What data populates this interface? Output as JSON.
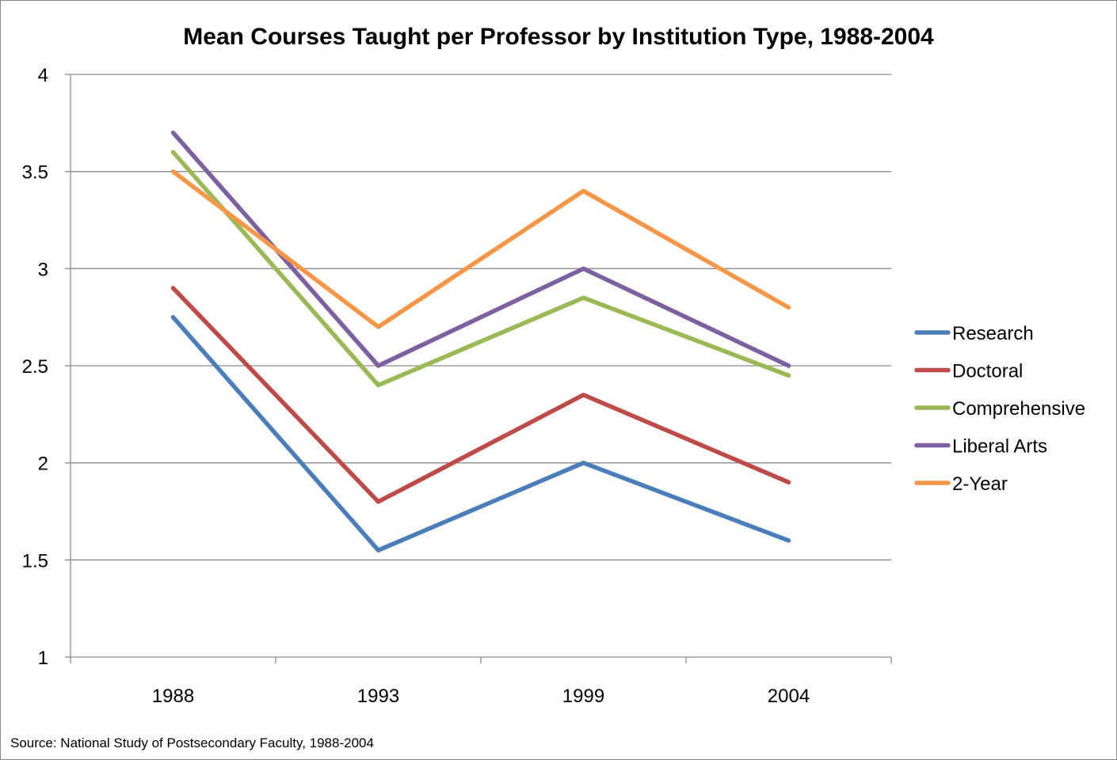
{
  "chart_data": {
    "type": "line",
    "title": "Mean Courses Taught per Professor by Institution Type, 1988-2004",
    "xlabel": "",
    "ylabel": "",
    "categories": [
      "1988",
      "1993",
      "1999",
      "2004"
    ],
    "ylim": [
      1,
      4
    ],
    "yticks": [
      "1",
      "1.5",
      "2",
      "2.5",
      "3",
      "3.5",
      "4"
    ],
    "grid": true,
    "legend_position": "right",
    "series": [
      {
        "name": "Research",
        "color": "#4A7EBB",
        "values": [
          2.75,
          1.55,
          2.0,
          1.6
        ]
      },
      {
        "name": "Doctoral",
        "color": "#BE4B48",
        "values": [
          2.9,
          1.8,
          2.35,
          1.9
        ]
      },
      {
        "name": "Comprehensive",
        "color": "#98B954",
        "values": [
          3.6,
          2.4,
          2.85,
          2.45
        ]
      },
      {
        "name": "Liberal Arts",
        "color": "#7D60A0",
        "values": [
          3.7,
          2.5,
          3.0,
          2.5
        ]
      },
      {
        "name": "2-Year",
        "color": "#F79646",
        "values": [
          3.5,
          2.7,
          3.4,
          2.8
        ]
      }
    ],
    "source": "Source: National Study of Postsecondary Faculty, 1988-2004"
  }
}
